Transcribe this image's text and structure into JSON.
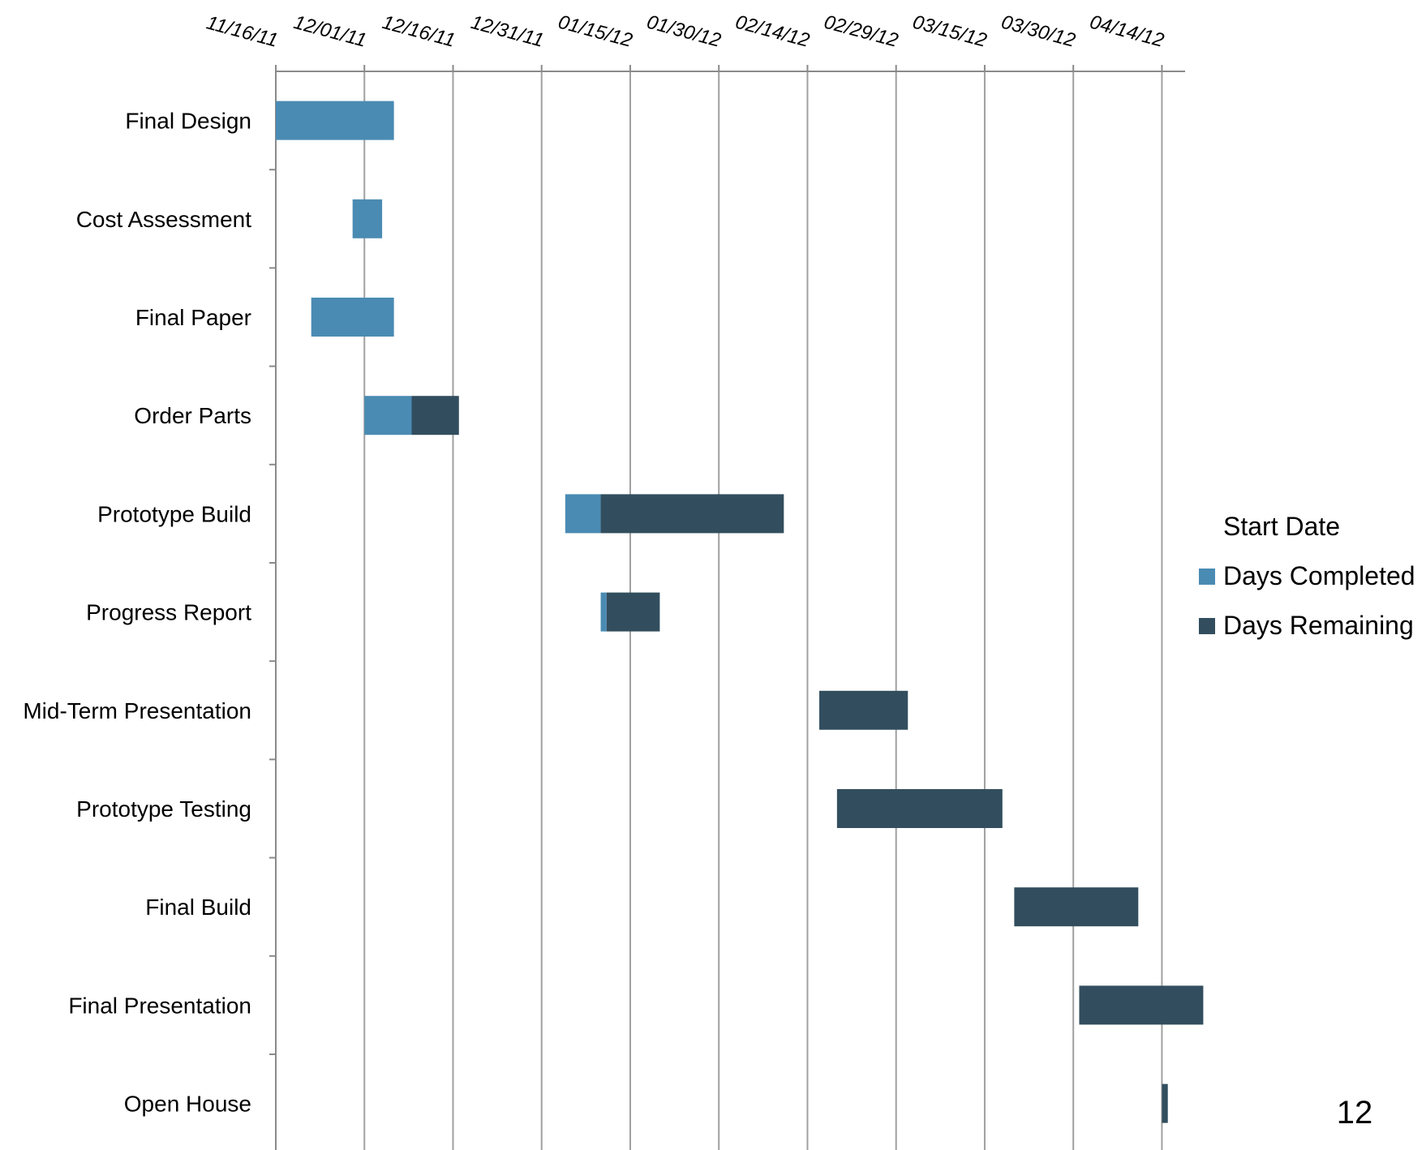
{
  "page_number": "12",
  "chart_data": {
    "type": "bar",
    "orientation": "horizontal",
    "stacked": true,
    "x_axis": {
      "tick_labels": [
        "11/16/11",
        "12/01/11",
        "12/16/11",
        "12/31/11",
        "01/15/12",
        "01/30/12",
        "02/14/12",
        "02/29/12",
        "03/15/12",
        "03/30/12",
        "04/14/12"
      ],
      "ticks": [
        "2011-11-16",
        "2011-12-01",
        "2011-12-16",
        "2011-12-31",
        "2012-01-15",
        "2012-01-30",
        "2012-02-14",
        "2012-02-29",
        "2012-03-15",
        "2012-03-30",
        "2012-04-14"
      ],
      "range": [
        "2011-11-16",
        "2012-04-16"
      ],
      "position": "top",
      "grid": true
    },
    "categories": [
      "Final Design",
      "Cost Assessment",
      "Final Paper",
      "Order Parts",
      "Prototype Build",
      "Progress Report",
      "Mid-Term Presentation",
      "Prototype Testing",
      "Final Build",
      "Final Presentation",
      "Open House"
    ],
    "series": [
      {
        "name": "Start Date",
        "role": "offset",
        "color": "none",
        "values": [
          "2011-11-16",
          "2011-11-29",
          "2011-11-22",
          "2011-12-01",
          "2012-01-04",
          "2012-01-10",
          "2012-02-16",
          "2012-02-19",
          "2012-03-20",
          "2012-03-31",
          "2012-04-14"
        ]
      },
      {
        "name": "Days Completed",
        "color": "#4a8bb3",
        "values": [
          20,
          5,
          14,
          8,
          6,
          1,
          0,
          0,
          0,
          0,
          0
        ]
      },
      {
        "name": "Days Remaining",
        "color": "#324e5e",
        "values": [
          0,
          0,
          0,
          8,
          31,
          9,
          15,
          28,
          21,
          21,
          1
        ]
      }
    ],
    "legend": {
      "placement": "right",
      "entries": [
        "Start Date",
        "Days Completed",
        "Days Remaining"
      ]
    }
  }
}
